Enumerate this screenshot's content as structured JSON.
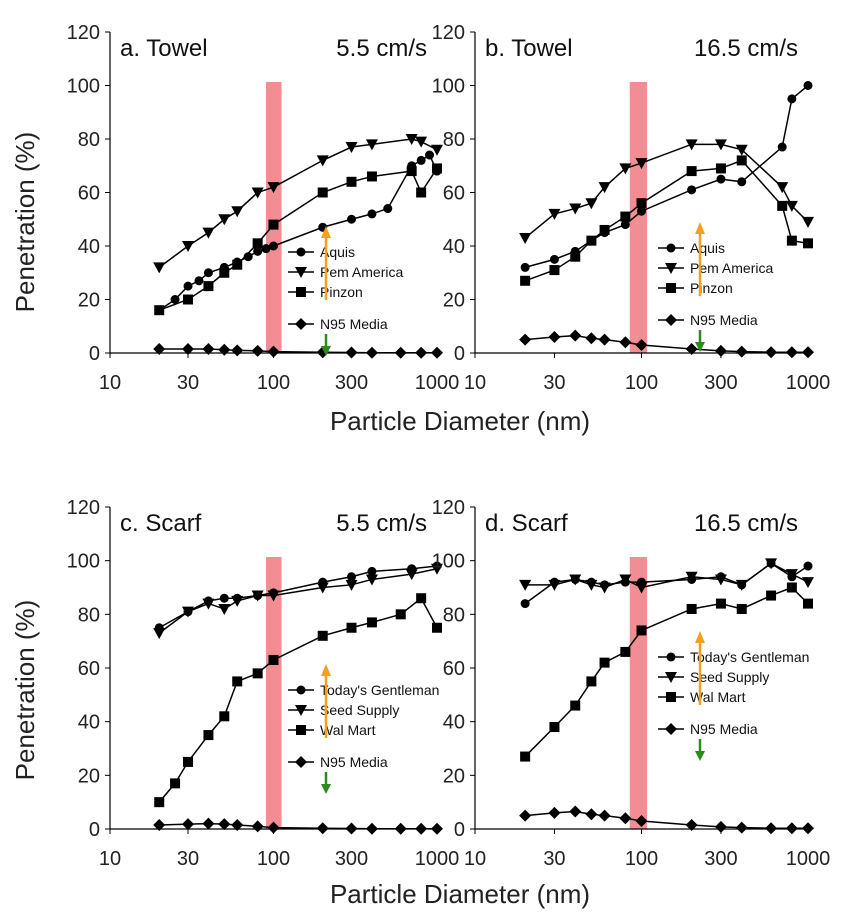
{
  "figure": {
    "ylabel": "Penetration (%)",
    "xlabel": "Particle Diameter (nm)"
  },
  "colors": {
    "highlight": "#f07a80",
    "up_arrow": "#f2a020",
    "down_arrow": "#2a8c1a",
    "series": "#000000"
  },
  "chart_data": [
    {
      "type": "line",
      "title": "a. Towel",
      "velocity": "5.5 cm/s",
      "x_scale": "log",
      "xlim": [
        10,
        1000
      ],
      "ylim": [
        0,
        120
      ],
      "xticks": [
        "10",
        "30",
        "100",
        "300",
        "1000"
      ],
      "yticks": [
        "0",
        "20",
        "40",
        "60",
        "80",
        "100",
        "120"
      ],
      "highlight_band": [
        90,
        112
      ],
      "legend": [
        "Aquis",
        "Pem America",
        "Pinzon",
        "N95 Media"
      ],
      "series": [
        {
          "name": "Aquis",
          "marker": "circle",
          "x": [
            20,
            25,
            30,
            35,
            40,
            50,
            60,
            70,
            80,
            90,
            100,
            200,
            300,
            400,
            500,
            700,
            800,
            900,
            1000
          ],
          "y": [
            16,
            20,
            25,
            27,
            30,
            32,
            34,
            36,
            38,
            39,
            40,
            47,
            50,
            52,
            54,
            70,
            72,
            74,
            68
          ]
        },
        {
          "name": "Pem America",
          "marker": "triangle-down",
          "x": [
            20,
            30,
            40,
            50,
            60,
            80,
            100,
            200,
            300,
            400,
            700,
            800,
            1000
          ],
          "y": [
            32,
            40,
            45,
            50,
            53,
            60,
            62,
            72,
            77,
            78,
            80,
            79,
            76
          ]
        },
        {
          "name": "Pinzon",
          "marker": "square",
          "x": [
            20,
            30,
            40,
            50,
            60,
            80,
            100,
            200,
            300,
            400,
            700,
            800,
            1000
          ],
          "y": [
            16,
            20,
            25,
            30,
            33,
            41,
            48,
            60,
            64,
            66,
            68,
            60,
            69
          ]
        },
        {
          "name": "N95 Media",
          "marker": "diamond",
          "x": [
            20,
            30,
            40,
            50,
            60,
            80,
            100,
            200,
            300,
            400,
            600,
            800,
            1000
          ],
          "y": [
            1.5,
            1.5,
            1.5,
            1.2,
            1,
            0.8,
            0.5,
            0.3,
            0.2,
            0.1,
            0.1,
            0.1,
            0.1
          ]
        }
      ]
    },
    {
      "type": "line",
      "title": "b. Towel",
      "velocity": "16.5 cm/s",
      "x_scale": "log",
      "xlim": [
        10,
        1000
      ],
      "ylim": [
        0,
        120
      ],
      "xticks": [
        "10",
        "30",
        "100",
        "300",
        "1000"
      ],
      "yticks": [
        "0",
        "20",
        "40",
        "60",
        "80",
        "100",
        "120"
      ],
      "highlight_band": [
        85,
        108
      ],
      "legend": [
        "Aquis",
        "Pem America",
        "Pinzon",
        "N95 Media"
      ],
      "series": [
        {
          "name": "Aquis",
          "marker": "circle",
          "x": [
            20,
            30,
            40,
            50,
            60,
            80,
            100,
            200,
            300,
            400,
            700,
            800,
            1000
          ],
          "y": [
            32,
            35,
            38,
            42,
            45,
            48,
            53,
            61,
            65,
            64,
            77,
            95,
            100
          ]
        },
        {
          "name": "Pem America",
          "marker": "triangle-down",
          "x": [
            20,
            30,
            40,
            50,
            60,
            80,
            100,
            200,
            300,
            400,
            700,
            800,
            1000
          ],
          "y": [
            43,
            52,
            54,
            56,
            62,
            69,
            71,
            78,
            78,
            76,
            62,
            55,
            49
          ]
        },
        {
          "name": "Pinzon",
          "marker": "square",
          "x": [
            20,
            30,
            40,
            50,
            60,
            80,
            100,
            200,
            300,
            400,
            700,
            800,
            1000
          ],
          "y": [
            27,
            31,
            36,
            42,
            46,
            51,
            56,
            68,
            69,
            72,
            55,
            42,
            41
          ]
        },
        {
          "name": "N95 Media",
          "marker": "diamond",
          "x": [
            20,
            30,
            40,
            50,
            60,
            80,
            100,
            200,
            300,
            400,
            600,
            800,
            1000
          ],
          "y": [
            5,
            6,
            6.5,
            5.5,
            5,
            4,
            3,
            1.5,
            0.8,
            0.5,
            0.3,
            0.3,
            0.3
          ]
        }
      ]
    },
    {
      "type": "line",
      "title": "c. Scarf",
      "velocity": "5.5 cm/s",
      "x_scale": "log",
      "xlim": [
        10,
        1000
      ],
      "ylim": [
        0,
        120
      ],
      "xticks": [
        "10",
        "30",
        "100",
        "300",
        "1000"
      ],
      "yticks": [
        "0",
        "20",
        "40",
        "60",
        "80",
        "100",
        "120"
      ],
      "highlight_band": [
        90,
        112
      ],
      "legend": [
        "Today's Gentleman",
        "Seed Supply",
        "Wal Mart",
        "N95 Media"
      ],
      "series": [
        {
          "name": "Today's Gentleman",
          "marker": "circle",
          "x": [
            20,
            30,
            40,
            50,
            60,
            80,
            100,
            200,
            300,
            400,
            700,
            1000
          ],
          "y": [
            75,
            81,
            85,
            86,
            86,
            87,
            88,
            92,
            94,
            96,
            97,
            98
          ]
        },
        {
          "name": "Seed Supply",
          "marker": "triangle-down",
          "x": [
            20,
            30,
            40,
            50,
            60,
            80,
            100,
            200,
            300,
            400,
            700,
            1000
          ],
          "y": [
            73,
            81,
            84,
            82,
            85,
            87,
            87,
            90,
            91,
            93,
            95,
            97
          ]
        },
        {
          "name": "Wal Mart",
          "marker": "square",
          "x": [
            20,
            25,
            30,
            40,
            50,
            60,
            80,
            100,
            200,
            300,
            400,
            600,
            800,
            1000
          ],
          "y": [
            10,
            17,
            25,
            35,
            42,
            55,
            58,
            63,
            72,
            75,
            77,
            80,
            86,
            75
          ]
        },
        {
          "name": "N95 Media",
          "marker": "diamond",
          "x": [
            20,
            30,
            40,
            50,
            60,
            80,
            100,
            200,
            300,
            400,
            600,
            800,
            1000
          ],
          "y": [
            1.5,
            1.8,
            2,
            1.8,
            1.5,
            1,
            0.5,
            0.3,
            0.2,
            0.1,
            0.1,
            0.1,
            0.1
          ]
        }
      ]
    },
    {
      "type": "line",
      "title": "d. Scarf",
      "velocity": "16.5 cm/s",
      "x_scale": "log",
      "xlim": [
        10,
        1000
      ],
      "ylim": [
        0,
        120
      ],
      "xticks": [
        "10",
        "30",
        "100",
        "300",
        "1000"
      ],
      "yticks": [
        "0",
        "20",
        "40",
        "60",
        "80",
        "100",
        "120"
      ],
      "highlight_band": [
        85,
        108
      ],
      "legend": [
        "Today's Gentleman",
        "Seed Supply",
        "Wal Mart",
        "N95 Media"
      ],
      "series": [
        {
          "name": "Today's Gentleman",
          "marker": "circle",
          "x": [
            20,
            30,
            40,
            50,
            60,
            80,
            100,
            200,
            300,
            400,
            600,
            800,
            1000
          ],
          "y": [
            84,
            92,
            93,
            92,
            91,
            92,
            92,
            93,
            94,
            91,
            99,
            94,
            98
          ]
        },
        {
          "name": "Seed Supply",
          "marker": "triangle-down",
          "x": [
            20,
            30,
            40,
            50,
            60,
            80,
            100,
            200,
            300,
            400,
            600,
            800,
            1000
          ],
          "y": [
            91,
            91,
            93,
            91,
            90,
            93,
            90,
            94,
            93,
            91,
            99,
            95,
            92
          ]
        },
        {
          "name": "Wal Mart",
          "marker": "square",
          "x": [
            20,
            30,
            40,
            50,
            60,
            80,
            100,
            200,
            300,
            400,
            600,
            800,
            1000
          ],
          "y": [
            27,
            38,
            46,
            55,
            62,
            66,
            74,
            82,
            84,
            82,
            87,
            90,
            84
          ]
        },
        {
          "name": "N95 Media",
          "marker": "diamond",
          "x": [
            20,
            30,
            40,
            50,
            60,
            80,
            100,
            200,
            300,
            400,
            600,
            800,
            1000
          ],
          "y": [
            5,
            6,
            6.5,
            5.5,
            5,
            4,
            3,
            1.5,
            0.8,
            0.5,
            0.3,
            0.3,
            0.3
          ]
        }
      ]
    }
  ]
}
